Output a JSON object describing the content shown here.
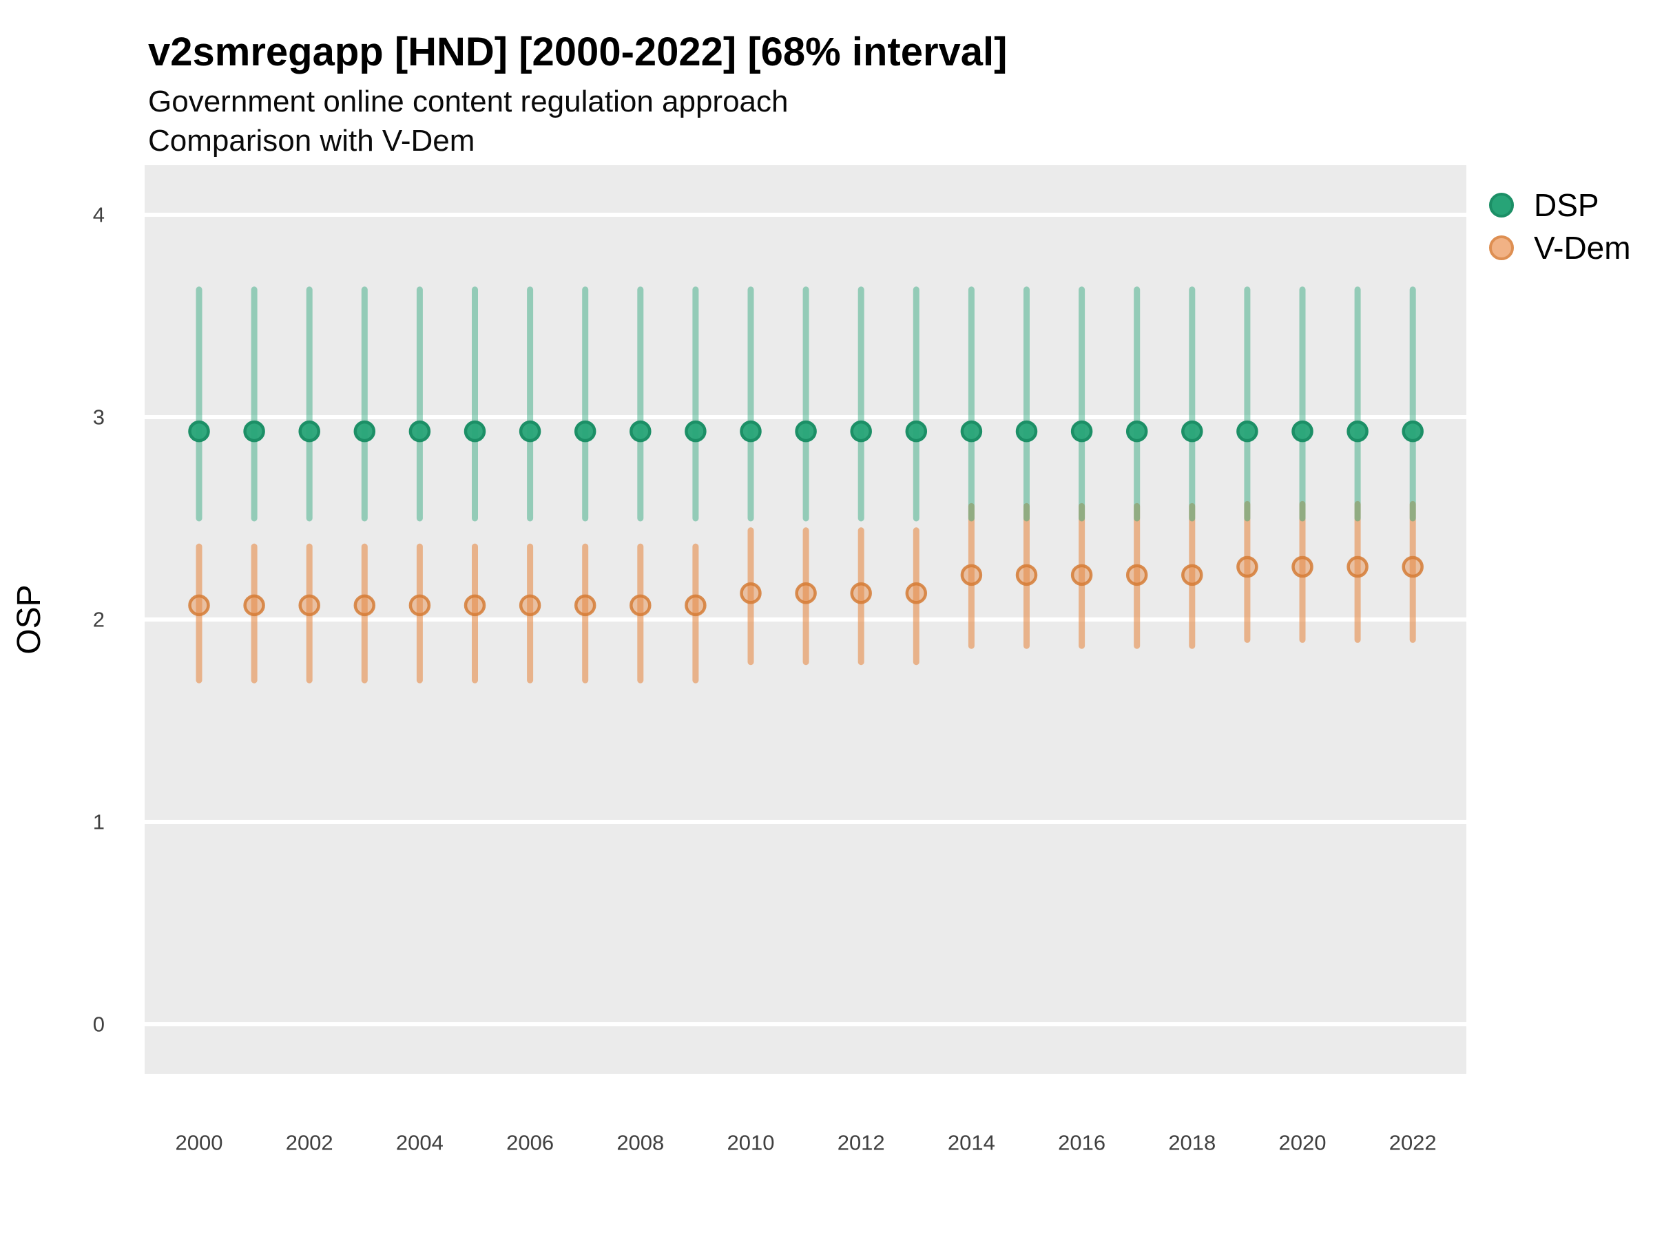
{
  "header": {
    "title": "v2smregapp [HND] [2000-2022] [68% interval]",
    "subtitle_line1": "Government online content regulation approach",
    "subtitle_line2": "Comparison with V-Dem"
  },
  "y_axis": {
    "label": "OSP",
    "tick_labels": [
      "0",
      "1",
      "2",
      "3",
      "4"
    ],
    "tick_values": [
      0,
      1,
      2,
      3,
      4
    ]
  },
  "x_axis": {
    "tick_labels": [
      "2000",
      "2002",
      "2004",
      "2006",
      "2008",
      "2010",
      "2012",
      "2014",
      "2016",
      "2018",
      "2020",
      "2022"
    ],
    "tick_values": [
      2000,
      2002,
      2004,
      2006,
      2008,
      2010,
      2012,
      2014,
      2016,
      2018,
      2020,
      2022
    ]
  },
  "legend": {
    "items": [
      {
        "id": "dsp",
        "label": "DSP",
        "swatch_fill": "#27A477",
        "swatch_stroke": "#1C8F66"
      },
      {
        "id": "vdem",
        "label": "V-Dem",
        "swatch_fill": "#F1B285",
        "swatch_stroke": "#DE8F52"
      }
    ]
  },
  "colors": {
    "panel_background": "#EBEBEB",
    "gridline": "#FFFFFF",
    "dsp_point_fill": "#27A477",
    "dsp_point_stroke": "#1C8F66",
    "dsp_bar": "rgba(39,164,119,0.45)",
    "vdem_point_fill": "rgba(230,140,73,0.45)",
    "vdem_point_stroke": "rgba(213,123,53,0.85)",
    "vdem_bar": "rgba(230,140,73,0.6)"
  },
  "chart_data": {
    "type": "pointrange",
    "title": "v2smregapp [HND] [2000-2022] [68% interval]",
    "subtitle": [
      "Government online content regulation approach",
      "Comparison with V-Dem"
    ],
    "interval": "68%",
    "xlabel": "",
    "ylabel": "OSP",
    "ylim": [
      -0.24,
      4.24
    ],
    "grid": true,
    "legend_position": "right",
    "x": [
      2000,
      2001,
      2002,
      2003,
      2004,
      2005,
      2006,
      2007,
      2008,
      2009,
      2010,
      2011,
      2012,
      2013,
      2014,
      2015,
      2016,
      2017,
      2018,
      2019,
      2020,
      2021,
      2022
    ],
    "series": [
      {
        "name": "DSP",
        "point": [
          2.93,
          2.93,
          2.93,
          2.93,
          2.93,
          2.93,
          2.93,
          2.93,
          2.93,
          2.93,
          2.93,
          2.93,
          2.93,
          2.93,
          2.93,
          2.93,
          2.93,
          2.93,
          2.93,
          2.93,
          2.93,
          2.93,
          2.93
        ],
        "low": [
          2.5,
          2.5,
          2.5,
          2.5,
          2.5,
          2.5,
          2.5,
          2.5,
          2.5,
          2.5,
          2.5,
          2.5,
          2.5,
          2.5,
          2.5,
          2.5,
          2.5,
          2.5,
          2.5,
          2.5,
          2.5,
          2.5,
          2.5
        ],
        "high": [
          3.63,
          3.63,
          3.63,
          3.63,
          3.63,
          3.63,
          3.63,
          3.63,
          3.63,
          3.63,
          3.63,
          3.63,
          3.63,
          3.63,
          3.63,
          3.63,
          3.63,
          3.63,
          3.63,
          3.63,
          3.63,
          3.63,
          3.63
        ]
      },
      {
        "name": "V-Dem",
        "point": [
          2.07,
          2.07,
          2.07,
          2.07,
          2.07,
          2.07,
          2.07,
          2.07,
          2.07,
          2.07,
          2.13,
          2.13,
          2.13,
          2.13,
          2.22,
          2.22,
          2.22,
          2.22,
          2.22,
          2.26,
          2.26,
          2.26,
          2.26
        ],
        "low": [
          1.7,
          1.7,
          1.7,
          1.7,
          1.7,
          1.7,
          1.7,
          1.7,
          1.7,
          1.7,
          1.79,
          1.79,
          1.79,
          1.79,
          1.87,
          1.87,
          1.87,
          1.87,
          1.87,
          1.9,
          1.9,
          1.9,
          1.9
        ],
        "high": [
          2.36,
          2.36,
          2.36,
          2.36,
          2.36,
          2.36,
          2.36,
          2.36,
          2.36,
          2.36,
          2.44,
          2.44,
          2.44,
          2.44,
          2.56,
          2.56,
          2.56,
          2.56,
          2.56,
          2.57,
          2.57,
          2.57,
          2.57
        ]
      }
    ]
  }
}
